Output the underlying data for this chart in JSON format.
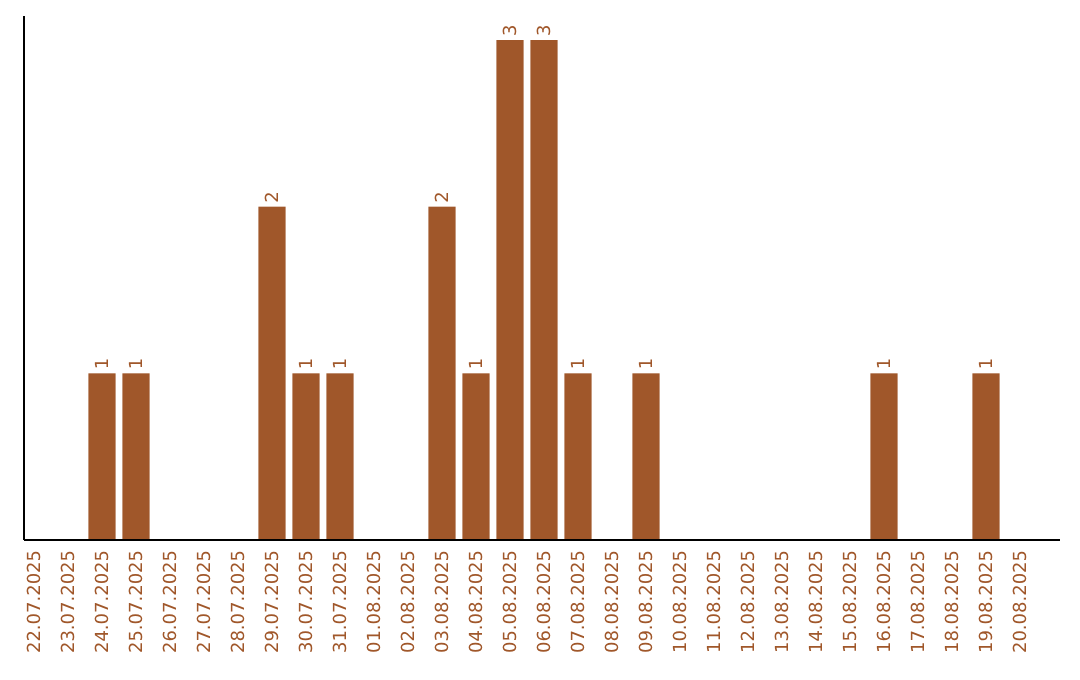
{
  "chart_data": {
    "type": "bar",
    "categories": [
      "22.07.2025",
      "23.07.2025",
      "24.07.2025",
      "25.07.2025",
      "26.07.2025",
      "27.07.2025",
      "28.07.2025",
      "29.07.2025",
      "30.07.2025",
      "31.07.2025",
      "01.08.2025",
      "02.08.2025",
      "03.08.2025",
      "04.08.2025",
      "05.08.2025",
      "06.08.2025",
      "07.08.2025",
      "08.08.2025",
      "09.08.2025",
      "10.08.2025",
      "11.08.2025",
      "12.08.2025",
      "13.08.2025",
      "14.08.2025",
      "15.08.2025",
      "16.08.2025",
      "17.08.2025",
      "18.08.2025",
      "19.08.2025",
      "20.08.2025"
    ],
    "values": [
      0,
      0,
      1,
      1,
      0,
      0,
      0,
      2,
      1,
      1,
      0,
      0,
      2,
      1,
      3,
      3,
      1,
      0,
      1,
      0,
      0,
      0,
      0,
      0,
      0,
      1,
      0,
      0,
      1,
      0
    ],
    "value_labels": [
      null,
      null,
      "1",
      "1",
      null,
      null,
      null,
      "2",
      "1",
      "1",
      null,
      null,
      "2",
      "1",
      "3",
      "3",
      "1",
      null,
      "1",
      null,
      null,
      null,
      null,
      null,
      null,
      "1",
      null,
      null,
      "1",
      null
    ],
    "color": "#a0572a",
    "tick_labels": "x"
  }
}
